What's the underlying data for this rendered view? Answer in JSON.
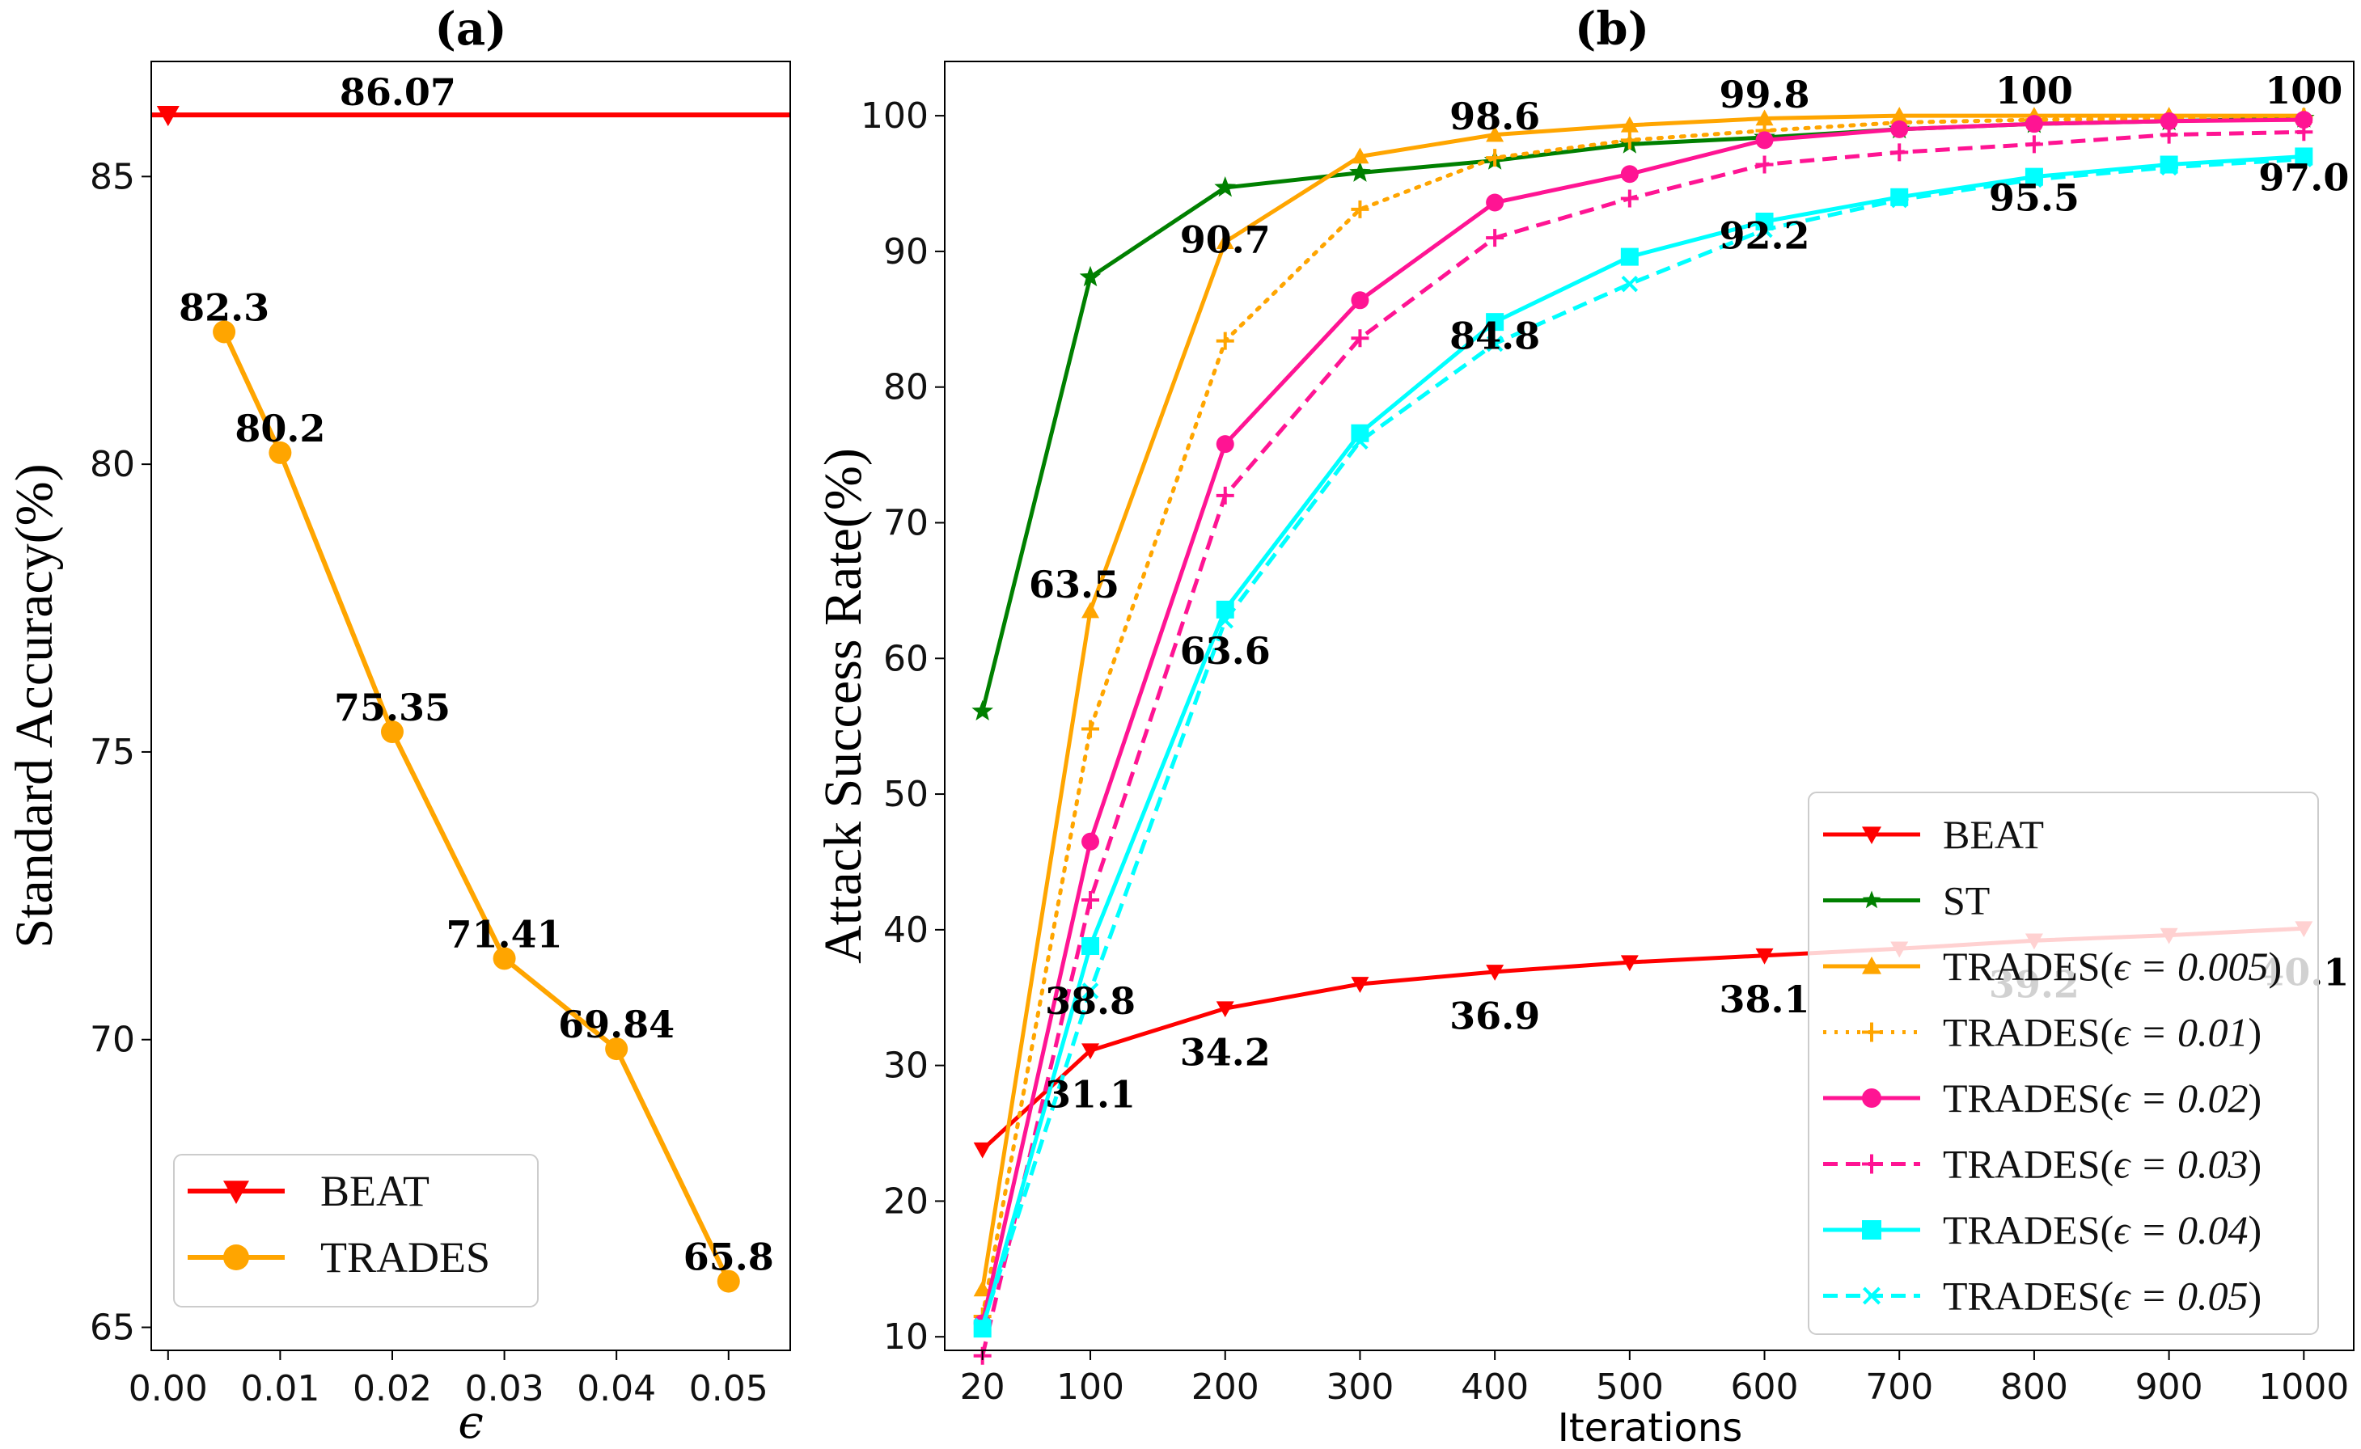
{
  "chart_data": [
    {
      "id": "a",
      "type": "line",
      "title": "(a)",
      "xlabel": "ϵ",
      "ylabel": "Standard Accuracy(%)",
      "xlim": [
        -0.0015,
        0.0555
      ],
      "ylim": [
        64.6,
        87.0
      ],
      "xticks": [
        0.0,
        0.01,
        0.02,
        0.03,
        0.04,
        0.05
      ],
      "xtick_labels": [
        "0.00",
        "0.01",
        "0.02",
        "0.03",
        "0.04",
        "0.05"
      ],
      "yticks": [
        65,
        70,
        75,
        80,
        85
      ],
      "ytick_labels": [
        "65",
        "70",
        "75",
        "80",
        "85"
      ],
      "legend_position": "lower-left",
      "series": [
        {
          "name": "BEAT",
          "color": "#ff0000",
          "marker": "triangle-down",
          "style": "hline",
          "x": [
            0.0
          ],
          "values": [
            86.07
          ],
          "labels": [
            "86.07"
          ],
          "label_x": [
            0.0205
          ]
        },
        {
          "name": "TRADES",
          "color": "#ffa500",
          "marker": "circle",
          "style": "solid",
          "x": [
            0.005,
            0.01,
            0.02,
            0.03,
            0.04,
            0.05
          ],
          "values": [
            82.3,
            80.2,
            75.35,
            71.41,
            69.84,
            65.8
          ],
          "labels": [
            "82.3",
            "80.2",
            "75.35",
            "71.41",
            "69.84",
            "65.8"
          ]
        }
      ]
    },
    {
      "id": "b",
      "type": "line",
      "title": "(b)",
      "xlabel": "Iterations",
      "ylabel": "Attack Success Rate(%)",
      "xlim": [
        -8,
        1037
      ],
      "ylim": [
        9,
        104
      ],
      "xticks": [
        20,
        100,
        200,
        300,
        400,
        500,
        600,
        700,
        800,
        900,
        1000
      ],
      "xtick_labels": [
        "20",
        "100",
        "200",
        "300",
        "400",
        "500",
        "600",
        "700",
        "800",
        "900",
        "1000"
      ],
      "yticks": [
        10,
        20,
        30,
        40,
        50,
        60,
        70,
        80,
        90,
        100
      ],
      "ytick_labels": [
        "10",
        "20",
        "30",
        "40",
        "50",
        "60",
        "70",
        "80",
        "90",
        "100"
      ],
      "legend_position": "lower-right",
      "categories": [
        20,
        100,
        200,
        300,
        400,
        500,
        600,
        700,
        800,
        900,
        1000
      ],
      "series": [
        {
          "name": "BEAT",
          "legend_main": "BEAT",
          "legend_eps": "",
          "color": "#ff0000",
          "marker": "triangle-down",
          "dash": "",
          "values": [
            23.8,
            31.1,
            34.2,
            36.0,
            36.9,
            37.6,
            38.1,
            38.6,
            39.2,
            39.6,
            40.1
          ]
        },
        {
          "name": "ST",
          "legend_main": "ST",
          "legend_eps": "",
          "color": "#008000",
          "marker": "star",
          "dash": "",
          "values": [
            56.1,
            88.1,
            94.7,
            95.8,
            96.7,
            97.9,
            98.4,
            99.0,
            99.4,
            99.6,
            99.8
          ]
        },
        {
          "name": "TRADES(ϵ = 0.005)",
          "legend_main": "TRADES(",
          "legend_eps": "ϵ = 0.005",
          "color": "#ffa500",
          "marker": "triangle-up",
          "dash": "",
          "values": [
            13.5,
            63.5,
            90.7,
            97.0,
            98.6,
            99.3,
            99.8,
            100.0,
            100.0,
            100.0,
            100.0
          ]
        },
        {
          "name": "TRADES(ϵ = 0.01)",
          "legend_main": "TRADES(",
          "legend_eps": "ϵ = 0.01",
          "color": "#ffa500",
          "marker": "plus",
          "dash": "4 10",
          "values": [
            11.5,
            54.8,
            83.4,
            93.1,
            96.9,
            98.2,
            98.9,
            99.5,
            99.7,
            99.8,
            99.9
          ]
        },
        {
          "name": "TRADES(ϵ = 0.02)",
          "legend_main": "TRADES(",
          "legend_eps": "ϵ = 0.02",
          "color": "#ff1493",
          "marker": "circle",
          "dash": "",
          "values": [
            11.0,
            46.5,
            75.8,
            86.4,
            93.6,
            95.7,
            98.2,
            99.0,
            99.4,
            99.6,
            99.7
          ]
        },
        {
          "name": "TRADES(ϵ = 0.03)",
          "legend_main": "TRADES(",
          "legend_eps": "ϵ = 0.03",
          "color": "#ff1493",
          "marker": "plus",
          "dash": "18 10",
          "values": [
            8.6,
            42.2,
            72.0,
            83.6,
            91.0,
            93.9,
            96.4,
            97.3,
            97.9,
            98.6,
            98.8
          ]
        },
        {
          "name": "TRADES(ϵ = 0.04)",
          "legend_main": "TRADES(",
          "legend_eps": "ϵ = 0.04",
          "color": "#00ffff",
          "marker": "square",
          "dash": "",
          "values": [
            10.6,
            38.8,
            63.6,
            76.6,
            84.8,
            89.6,
            92.2,
            94.0,
            95.5,
            96.4,
            97.0
          ]
        },
        {
          "name": "TRADES(ϵ = 0.05)",
          "legend_main": "TRADES(",
          "legend_eps": "ϵ = 0.05",
          "color": "#00ffff",
          "marker": "x",
          "dash": "18 10",
          "values": [
            10.8,
            35.5,
            62.8,
            76.0,
            83.2,
            87.6,
            91.6,
            93.8,
            95.3,
            96.2,
            96.8
          ]
        }
      ],
      "annotations": [
        {
          "x": 100,
          "y": 63.5,
          "text": "63.5",
          "dx": -20,
          "dy": 1.0
        },
        {
          "x": 200,
          "y": 90.7,
          "text": "90.7",
          "dx": 0,
          "dy": -0.8
        },
        {
          "x": 400,
          "y": 98.6,
          "text": "98.6",
          "dx": 0,
          "dy": 0.4
        },
        {
          "x": 600,
          "y": 99.8,
          "text": "99.8",
          "dx": 0,
          "dy": 0.8
        },
        {
          "x": 800,
          "y": 100,
          "text": "100",
          "dx": 0,
          "dy": 0.9
        },
        {
          "x": 1000,
          "y": 100,
          "text": "100",
          "dx": 0,
          "dy": 0.9
        },
        {
          "x": 100,
          "y": 38.8,
          "text": "38.8",
          "dx": 0,
          "dy": -5.0
        },
        {
          "x": 200,
          "y": 63.6,
          "text": "63.6",
          "dx": 0,
          "dy": -4.0
        },
        {
          "x": 400,
          "y": 84.8,
          "text": "84.8",
          "dx": 0,
          "dy": -2.0
        },
        {
          "x": 600,
          "y": 92.2,
          "text": "92.2",
          "dx": 0,
          "dy": -2.0
        },
        {
          "x": 800,
          "y": 95.5,
          "text": "95.5",
          "dx": 0,
          "dy": -2.5
        },
        {
          "x": 1000,
          "y": 97.0,
          "text": "97.0",
          "dx": 0,
          "dy": -2.5
        },
        {
          "x": 100,
          "y": 31.1,
          "text": "31.1",
          "dx": 0,
          "dy": -4.2
        },
        {
          "x": 200,
          "y": 34.2,
          "text": "34.2",
          "dx": 0,
          "dy": -4.2
        },
        {
          "x": 400,
          "y": 36.9,
          "text": "36.9",
          "dx": 0,
          "dy": -4.2
        },
        {
          "x": 600,
          "y": 38.1,
          "text": "38.1",
          "dx": 0,
          "dy": -4.2
        },
        {
          "x": 800,
          "y": 39.2,
          "text": "39.2",
          "dx": 0,
          "dy": -4.2
        },
        {
          "x": 1000,
          "y": 40.1,
          "text": "40.1",
          "dx": 0,
          "dy": -4.2
        }
      ]
    }
  ]
}
